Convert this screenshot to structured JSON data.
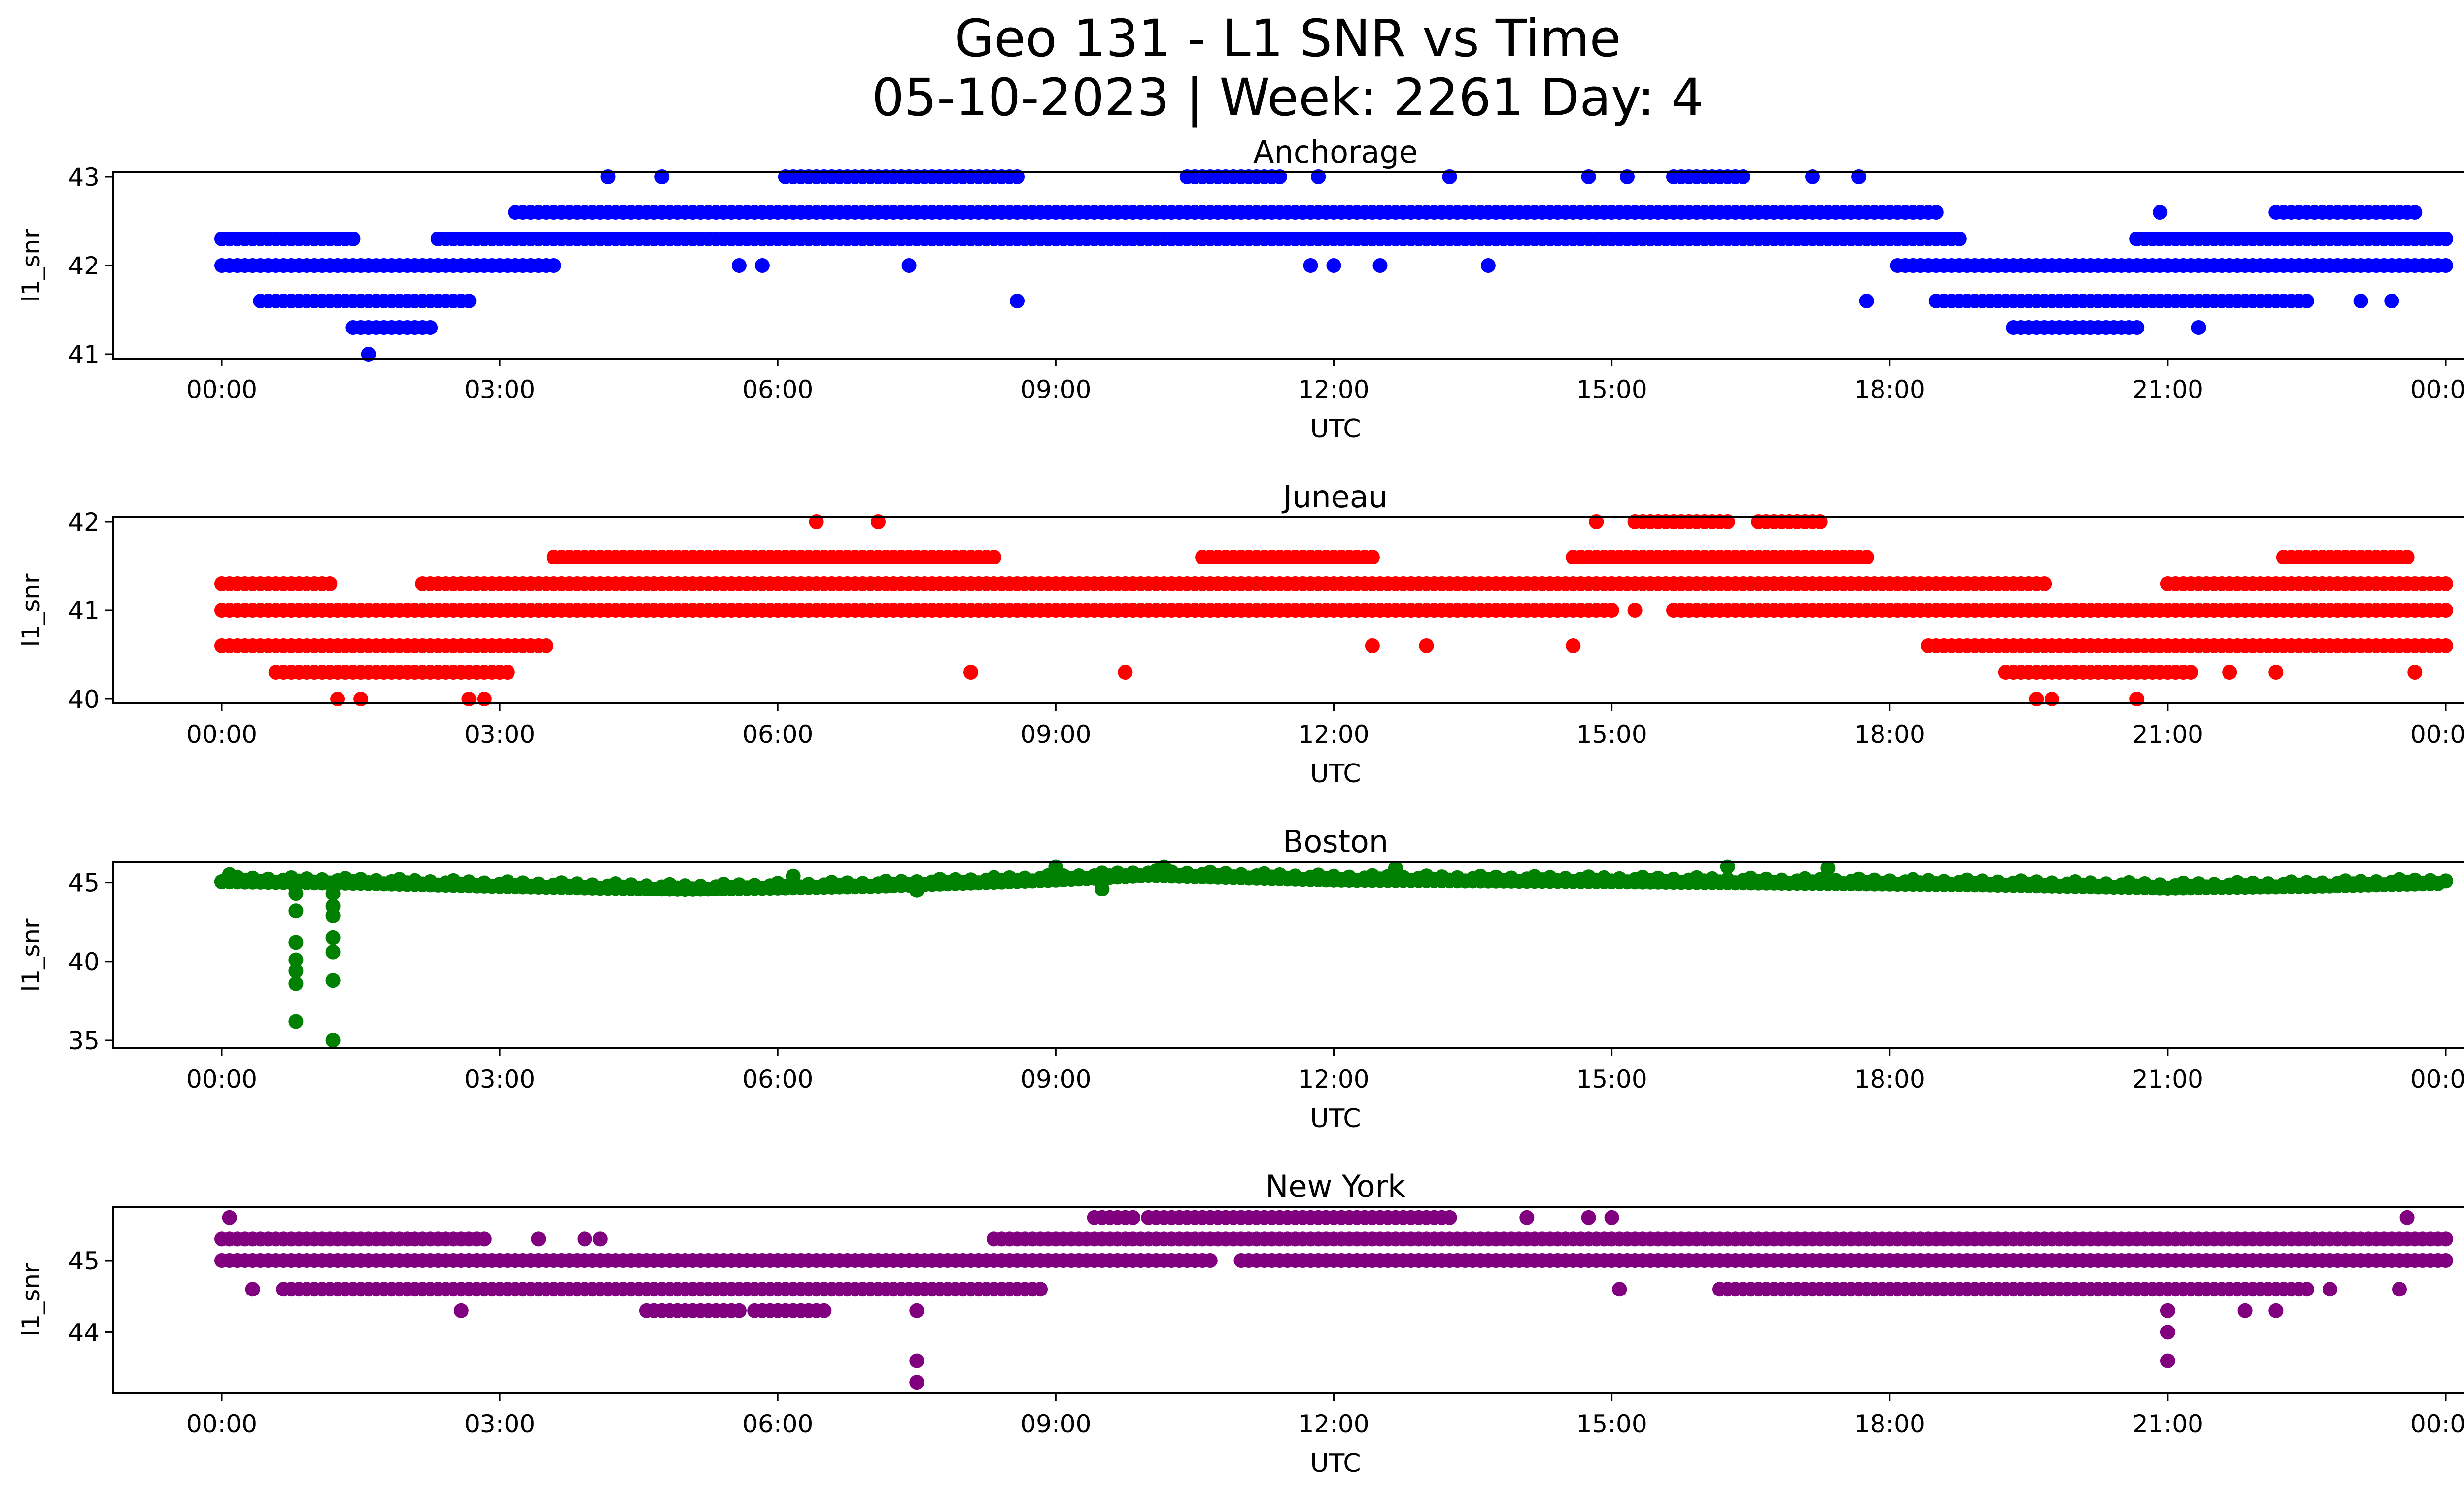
{
  "figure": {
    "title_line1": "Geo 131 - L1 SNR vs Time",
    "title_line2": "05-10-2023 | Week: 2261 Day: 4"
  },
  "chart_data": [
    {
      "type": "scatter",
      "title": "Anchorage",
      "xlabel": "UTC",
      "ylabel": "l1_snr",
      "color": "#0000ff",
      "xlim": [
        "00:00",
        "24:00"
      ],
      "ylim": [
        40.95,
        43.05
      ],
      "yticks": [
        41,
        42,
        43
      ],
      "xticks": [
        "00:00",
        "03:00",
        "06:00",
        "09:00",
        "12:00",
        "15:00",
        "18:00",
        "21:00",
        "00:00"
      ],
      "grid": false,
      "levels": [
        {
          "y": 42.3,
          "ranges": [
            [
              "00:00",
              "01:25"
            ],
            [
              "02:20",
              "18:45"
            ],
            [
              "20:40",
              "24:00"
            ]
          ]
        },
        {
          "y": 42.0,
          "ranges": [
            [
              "00:00",
              "03:35"
            ],
            [
              "18:05",
              "24:00"
            ]
          ]
        },
        {
          "y": 42.6,
          "ranges": [
            [
              "03:10",
              "18:30"
            ],
            [
              "22:10",
              "23:40"
            ]
          ]
        },
        {
          "y": 41.6,
          "ranges": [
            [
              "00:25",
              "02:40"
            ],
            [
              "18:30",
              "22:30"
            ]
          ]
        },
        {
          "y": 41.3,
          "ranges": [
            [
              "01:25",
              "02:15"
            ],
            [
              "19:20",
              "20:40"
            ]
          ]
        },
        {
          "y": 43.0,
          "ranges": [
            [
              "06:05",
              "08:35"
            ],
            [
              "10:25",
              "11:25"
            ],
            [
              "15:40",
              "16:25"
            ]
          ]
        }
      ],
      "points": [
        [
          "01:35",
          41.0
        ],
        [
          "04:10",
          43.0
        ],
        [
          "04:45",
          43.0
        ],
        [
          "11:50",
          43.0
        ],
        [
          "13:15",
          43.0
        ],
        [
          "14:45",
          43.0
        ],
        [
          "15:10",
          43.0
        ],
        [
          "17:10",
          43.0
        ],
        [
          "17:40",
          43.0
        ],
        [
          "05:35",
          42.0
        ],
        [
          "05:50",
          42.0
        ],
        [
          "07:25",
          42.0
        ],
        [
          "08:35",
          41.6
        ],
        [
          "11:45",
          42.0
        ],
        [
          "12:00",
          42.0
        ],
        [
          "12:30",
          42.0
        ],
        [
          "13:40",
          42.0
        ],
        [
          "17:45",
          41.6
        ],
        [
          "20:55",
          42.6
        ],
        [
          "21:20",
          41.3
        ],
        [
          "23:05",
          41.6
        ],
        [
          "23:25",
          41.6
        ]
      ]
    },
    {
      "type": "scatter",
      "title": "Juneau",
      "xlabel": "UTC",
      "ylabel": "l1_snr",
      "color": "#ff0000",
      "xlim": [
        "00:00",
        "24:00"
      ],
      "ylim": [
        39.95,
        42.05
      ],
      "yticks": [
        40,
        41,
        42
      ],
      "xticks": [
        "00:00",
        "03:00",
        "06:00",
        "09:00",
        "12:00",
        "15:00",
        "18:00",
        "21:00",
        "00:00"
      ],
      "grid": false,
      "levels": [
        {
          "y": 41.3,
          "ranges": [
            [
              "00:00",
              "01:10"
            ],
            [
              "02:10",
              "19:40"
            ],
            [
              "21:00",
              "24:00"
            ]
          ]
        },
        {
          "y": 41.0,
          "ranges": [
            [
              "00:00",
              "15:00"
            ],
            [
              "15:40",
              "24:00"
            ]
          ]
        },
        {
          "y": 40.6,
          "ranges": [
            [
              "00:00",
              "03:30"
            ],
            [
              "18:25",
              "24:00"
            ]
          ]
        },
        {
          "y": 41.6,
          "ranges": [
            [
              "03:35",
              "08:20"
            ],
            [
              "10:35",
              "12:25"
            ],
            [
              "14:35",
              "17:45"
            ],
            [
              "22:15",
              "23:35"
            ]
          ]
        },
        {
          "y": 40.3,
          "ranges": [
            [
              "00:35",
              "03:05"
            ],
            [
              "19:15",
              "21:15"
            ]
          ]
        },
        {
          "y": 42.0,
          "ranges": [
            [
              "15:15",
              "16:15"
            ],
            [
              "16:35",
              "17:15"
            ]
          ]
        }
      ],
      "points": [
        [
          "01:15",
          40.0
        ],
        [
          "01:30",
          40.0
        ],
        [
          "02:40",
          40.0
        ],
        [
          "02:50",
          40.0
        ],
        [
          "06:25",
          42.0
        ],
        [
          "07:05",
          42.0
        ],
        [
          "14:50",
          42.0
        ],
        [
          "15:15",
          41.0
        ],
        [
          "12:25",
          40.6
        ],
        [
          "13:00",
          40.6
        ],
        [
          "14:35",
          40.6
        ],
        [
          "08:05",
          40.3
        ],
        [
          "09:45",
          40.3
        ],
        [
          "19:35",
          40.0
        ],
        [
          "19:45",
          40.0
        ],
        [
          "20:40",
          40.0
        ],
        [
          "21:40",
          40.3
        ],
        [
          "22:10",
          40.3
        ],
        [
          "23:40",
          40.3
        ]
      ]
    },
    {
      "type": "scatter",
      "title": "Boston",
      "xlabel": "UTC",
      "ylabel": "l1_snr",
      "color": "#008000",
      "xlim": [
        "00:00",
        "24:00"
      ],
      "ylim": [
        34.5,
        46.3
      ],
      "yticks": [
        35,
        40,
        45
      ],
      "xticks": [
        "00:00",
        "03:00",
        "06:00",
        "09:00",
        "12:00",
        "15:00",
        "18:00",
        "21:00",
        "00:00"
      ],
      "grid": false,
      "segments": [
        [
          "00:00",
          45.2
        ],
        [
          "01:30",
          45.1
        ],
        [
          "03:00",
          44.9
        ],
        [
          "05:00",
          44.7
        ],
        [
          "07:00",
          44.9
        ],
        [
          "09:00",
          45.3
        ],
        [
          "10:00",
          45.6
        ],
        [
          "12:00",
          45.3
        ],
        [
          "15:00",
          45.2
        ],
        [
          "17:00",
          45.1
        ],
        [
          "19:00",
          45.0
        ],
        [
          "21:00",
          44.8
        ],
        [
          "22:30",
          44.9
        ],
        [
          "24:00",
          45.1
        ]
      ],
      "points": [
        [
          "00:48",
          44.3
        ],
        [
          "00:48",
          43.2
        ],
        [
          "00:48",
          41.2
        ],
        [
          "00:48",
          40.1
        ],
        [
          "00:48",
          39.4
        ],
        [
          "00:48",
          38.6
        ],
        [
          "00:48",
          36.2
        ],
        [
          "01:12",
          44.3
        ],
        [
          "01:12",
          43.5
        ],
        [
          "01:12",
          42.9
        ],
        [
          "01:12",
          41.5
        ],
        [
          "01:12",
          40.6
        ],
        [
          "01:12",
          38.8
        ],
        [
          "01:12",
          35.0
        ],
        [
          "09:00",
          46.0
        ],
        [
          "10:10",
          46.0
        ],
        [
          "12:40",
          45.9
        ],
        [
          "16:15",
          46.0
        ],
        [
          "17:20",
          45.9
        ],
        [
          "00:05",
          45.5
        ],
        [
          "06:10",
          45.4
        ],
        [
          "07:30",
          44.5
        ],
        [
          "09:30",
          44.6
        ]
      ]
    },
    {
      "type": "scatter",
      "title": "New York",
      "xlabel": "UTC",
      "ylabel": "l1_snr",
      "color": "#800080",
      "xlim": [
        "00:00",
        "24:00"
      ],
      "ylim": [
        43.15,
        45.75
      ],
      "yticks": [
        44,
        45
      ],
      "xticks": [
        "00:00",
        "03:00",
        "06:00",
        "09:00",
        "12:00",
        "15:00",
        "18:00",
        "21:00",
        "00:00"
      ],
      "grid": false,
      "levels": [
        {
          "y": 45.3,
          "ranges": [
            [
              "00:00",
              "02:50"
            ],
            [
              "08:20",
              "24:00"
            ]
          ]
        },
        {
          "y": 45.0,
          "ranges": [
            [
              "00:00",
              "10:40"
            ],
            [
              "11:00",
              "24:00"
            ]
          ]
        },
        {
          "y": 44.6,
          "ranges": [
            [
              "00:40",
              "08:50"
            ],
            [
              "16:10",
              "22:30"
            ]
          ]
        },
        {
          "y": 45.6,
          "ranges": [
            [
              "09:25",
              "09:50"
            ],
            [
              "10:00",
              "13:15"
            ]
          ]
        },
        {
          "y": 44.3,
          "ranges": [
            [
              "04:35",
              "05:35"
            ],
            [
              "05:45",
              "06:30"
            ]
          ]
        }
      ],
      "points": [
        [
          "00:05",
          45.6
        ],
        [
          "14:05",
          45.6
        ],
        [
          "14:45",
          45.6
        ],
        [
          "15:00",
          45.6
        ],
        [
          "23:35",
          45.6
        ],
        [
          "00:20",
          44.6
        ],
        [
          "02:35",
          44.3
        ],
        [
          "03:25",
          45.3
        ],
        [
          "03:55",
          45.3
        ],
        [
          "04:05",
          45.3
        ],
        [
          "07:30",
          44.3
        ],
        [
          "07:30",
          43.6
        ],
        [
          "07:30",
          43.3
        ],
        [
          "15:05",
          44.6
        ],
        [
          "21:00",
          44.3
        ],
        [
          "21:00",
          44.0
        ],
        [
          "21:00",
          43.6
        ],
        [
          "21:20",
          44.6
        ],
        [
          "21:50",
          44.3
        ],
        [
          "22:10",
          44.3
        ],
        [
          "22:45",
          44.6
        ],
        [
          "23:30",
          44.6
        ]
      ]
    }
  ]
}
